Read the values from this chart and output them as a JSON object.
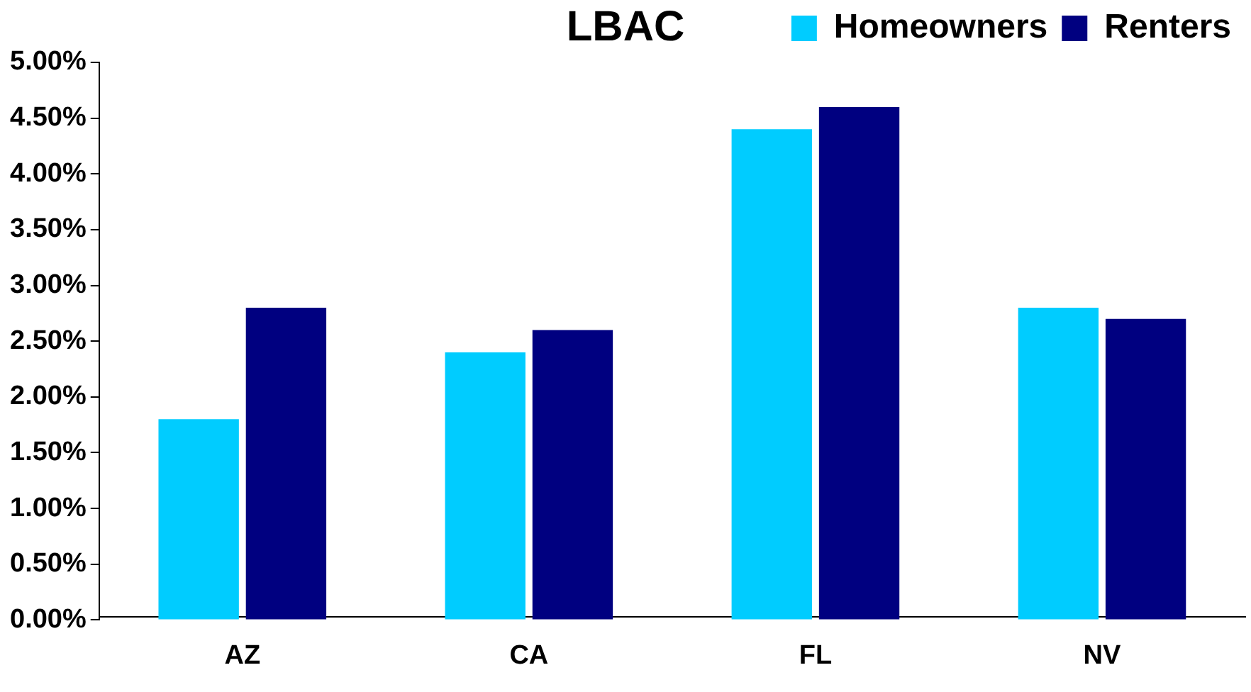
{
  "chart_data": {
    "type": "bar",
    "title": "LBAC",
    "categories": [
      "AZ",
      "CA",
      "FL",
      "NV"
    ],
    "series": [
      {
        "name": "Homeowners",
        "color": "#00ccff",
        "values": [
          1.8,
          2.4,
          4.4,
          2.8
        ]
      },
      {
        "name": "Renters",
        "color": "#000080",
        "values": [
          2.8,
          2.6,
          4.6,
          2.7
        ]
      }
    ],
    "ylim": [
      0,
      5
    ],
    "yticks": [
      {
        "value": 0,
        "label": "0.00%"
      },
      {
        "value": 0.5,
        "label": "0.50%"
      },
      {
        "value": 1,
        "label": "1.00%"
      },
      {
        "value": 1.5,
        "label": "1.50%"
      },
      {
        "value": 2,
        "label": "2.00%"
      },
      {
        "value": 2.5,
        "label": "2.50%"
      },
      {
        "value": 3,
        "label": "3.00%"
      },
      {
        "value": 3.5,
        "label": "3.50%"
      },
      {
        "value": 4,
        "label": "4.00%"
      },
      {
        "value": 4.5,
        "label": "4.50%"
      },
      {
        "value": 5,
        "label": "5.00%"
      }
    ],
    "grid": false,
    "legend": "top right"
  }
}
